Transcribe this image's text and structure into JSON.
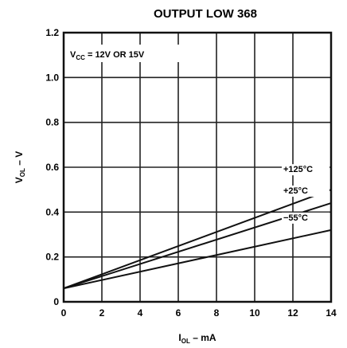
{
  "chart_data": {
    "type": "line",
    "title": "OUTPUT LOW 368",
    "xlabel": "I",
    "xlabel_sub": "OL",
    "xlabel_suffix": " – mA",
    "ylabel": "V",
    "ylabel_sub": "OL",
    "ylabel_suffix": " – V",
    "xlim": [
      0,
      14
    ],
    "ylim": [
      0,
      1.2
    ],
    "x_ticks": [
      "0",
      "2",
      "4",
      "6",
      "8",
      "10",
      "12",
      "14"
    ],
    "y_ticks": [
      "0",
      "0.2",
      "0.4",
      "0.6",
      "0.8",
      "1.0",
      "1.2"
    ],
    "grid": true,
    "annotation": {
      "prefix": "V",
      "sub": "CC",
      "suffix": " = 12V OR 15V"
    },
    "series": [
      {
        "name": "+125°C",
        "x": [
          0,
          14
        ],
        "y": [
          0.06,
          0.5
        ]
      },
      {
        "name": "+25°C",
        "x": [
          0,
          14
        ],
        "y": [
          0.06,
          0.44
        ]
      },
      {
        "name": "−55°C",
        "x": [
          0,
          14
        ],
        "y": [
          0.06,
          0.32
        ]
      }
    ]
  }
}
